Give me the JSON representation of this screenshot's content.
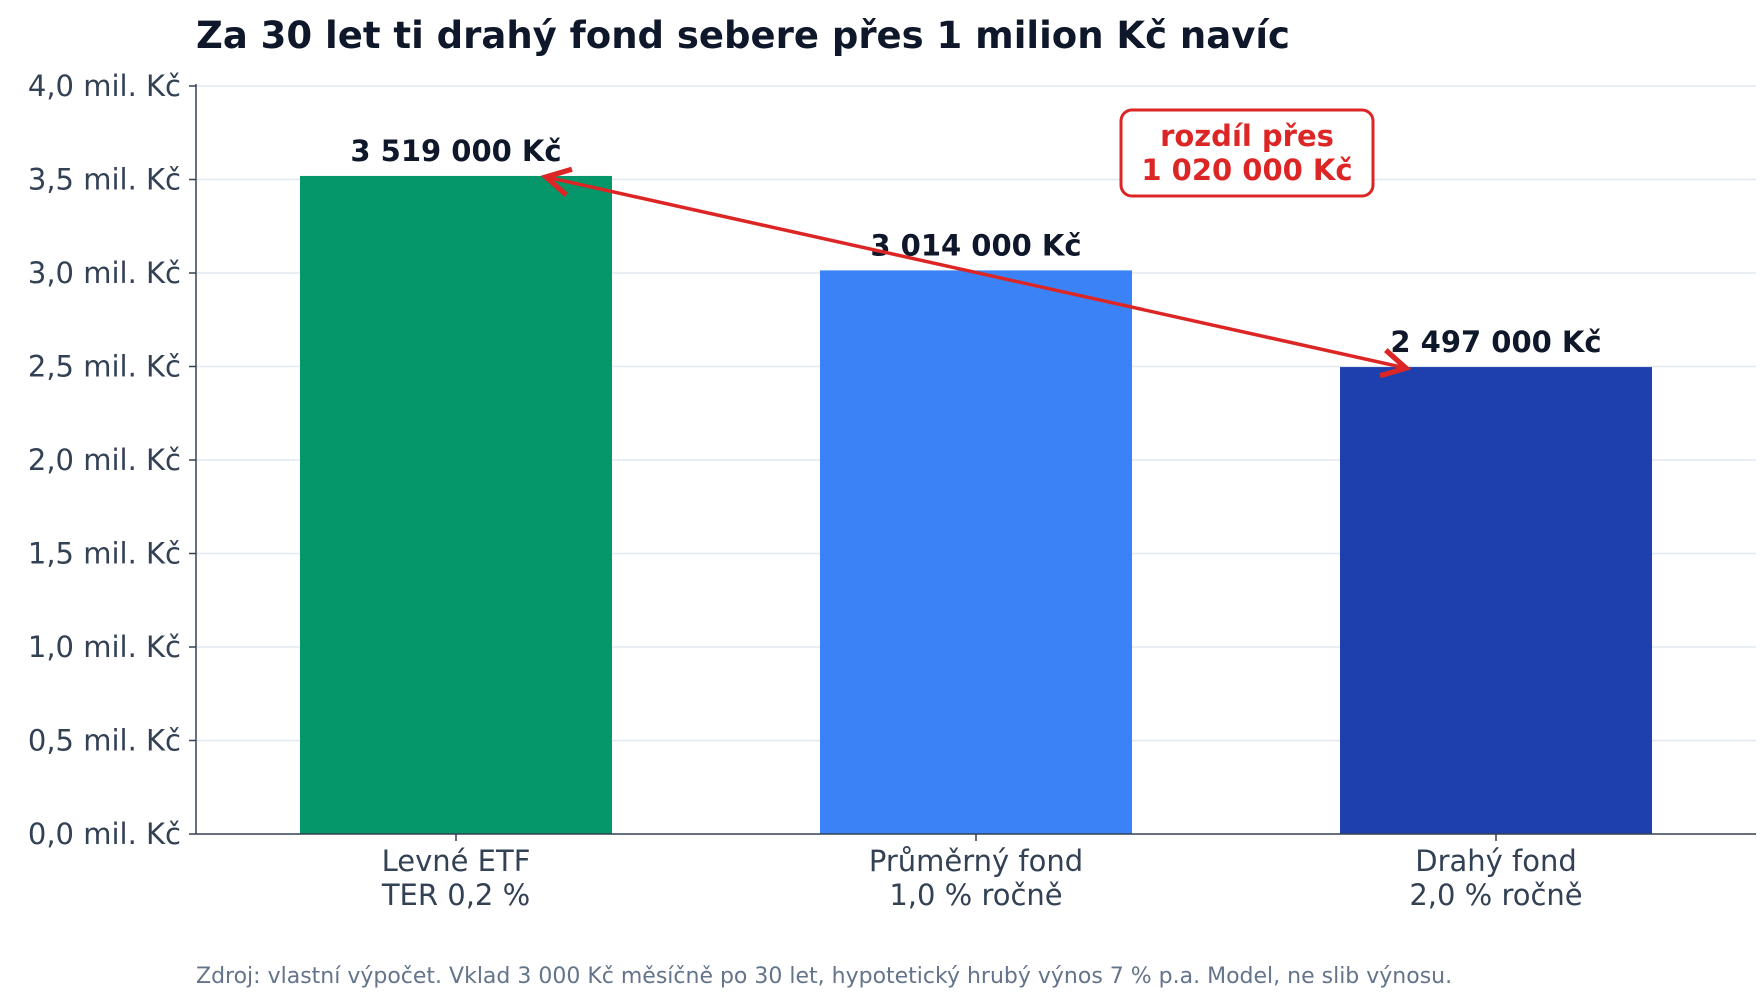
{
  "chart_data": {
    "type": "bar",
    "title": "Za 30 let ti drahý fond sebere přes 1 milion Kč navíc",
    "categories": [
      [
        "Levné ETF",
        "TER 0,2 %"
      ],
      [
        "Průměrný fond",
        "1,0 % ročně"
      ],
      [
        "Drahý fond",
        "2,0 % ročně"
      ]
    ],
    "values": [
      3519000,
      3014000,
      2497000
    ],
    "value_labels": [
      "3 519 000 Kč",
      "3 014 000 Kč",
      "2 497 000 Kč"
    ],
    "colors": [
      "#059669",
      "#3b82f6",
      "#1e40af"
    ],
    "ylim": [
      0,
      4000000
    ],
    "yticks": [
      0,
      500000,
      1000000,
      1500000,
      2000000,
      2500000,
      3000000,
      3500000,
      4000000
    ],
    "ytick_labels": [
      "0,0 mil. Kč",
      "0,5 mil. Kč",
      "1,0 mil. Kč",
      "1,5 mil. Kč",
      "2,0 mil. Kč",
      "2,5 mil. Kč",
      "3,0 mil. Kč",
      "3,5 mil. Kč",
      "4,0 mil. Kč"
    ],
    "grid": "horizontal",
    "annotation": {
      "lines": [
        "rozdíl přes",
        "1 020 000 Kč"
      ],
      "color": "#dc2626",
      "arrow_from": 0,
      "arrow_to": 2
    },
    "source": "Zdroj: vlastní výpočet. Vklad 3 000 Kč měsíčně po 30 let, hypotetický hrubý výnos 7 % p.a. Model, ne slib výnosu."
  }
}
